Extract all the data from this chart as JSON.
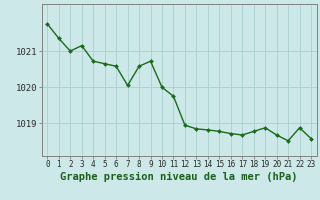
{
  "x": [
    0,
    1,
    2,
    3,
    4,
    5,
    6,
    7,
    8,
    9,
    10,
    11,
    12,
    13,
    14,
    15,
    16,
    17,
    18,
    19,
    20,
    21,
    22,
    23
  ],
  "y": [
    1021.75,
    1021.35,
    1021.0,
    1021.15,
    1020.72,
    1020.65,
    1020.58,
    1020.05,
    1020.58,
    1020.72,
    1020.0,
    1019.75,
    1018.95,
    1018.85,
    1018.82,
    1018.78,
    1018.72,
    1018.68,
    1018.78,
    1018.88,
    1018.68,
    1018.52,
    1018.88,
    1018.58
  ],
  "line_color": "#1a6b1a",
  "marker_color": "#1a6b1a",
  "bg_color": "#cce8e8",
  "grid_color": "#aacfcf",
  "axis_color": "#808080",
  "xlabel": "Graphe pression niveau de la mer (hPa)",
  "xlabel_color": "#1a5f1a",
  "xlabel_fontsize": 7.5,
  "yticks": [
    1019,
    1020,
    1021
  ],
  "ylim": [
    1018.1,
    1022.3
  ],
  "xlim": [
    -0.5,
    23.5
  ],
  "xtick_labels": [
    "0",
    "1",
    "2",
    "3",
    "4",
    "5",
    "6",
    "7",
    "8",
    "9",
    "10",
    "11",
    "12",
    "13",
    "14",
    "15",
    "16",
    "17",
    "18",
    "19",
    "20",
    "21",
    "22",
    "23"
  ],
  "tick_fontsize": 5.5,
  "ytick_fontsize": 6.5,
  "marker_size": 2.0,
  "line_width": 1.0
}
